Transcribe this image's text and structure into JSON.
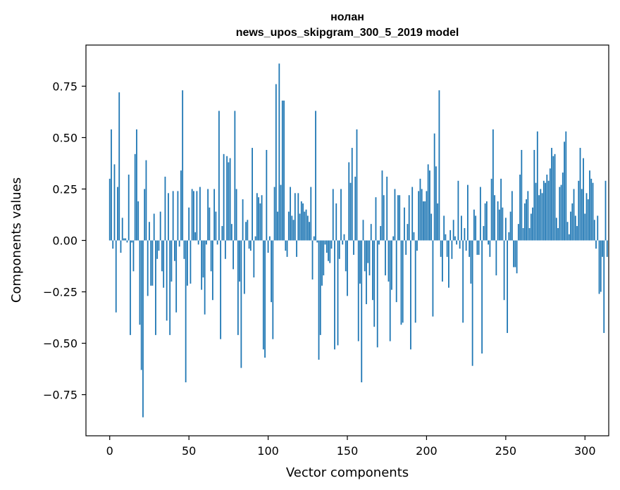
{
  "chart_data": {
    "type": "bar",
    "title": "нолан",
    "subtitle": "news_upos_skipgram_300_5_2019 model",
    "xlabel": "Vector components",
    "ylabel": "Components values",
    "xlim": [
      -15,
      315
    ],
    "ylim": [
      -0.95,
      0.95
    ],
    "xticks": [
      0,
      50,
      100,
      150,
      200,
      250,
      300
    ],
    "yticks": [
      -0.75,
      -0.5,
      -0.25,
      0.0,
      0.25,
      0.5,
      0.75
    ],
    "xtick_labels": [
      "0",
      "50",
      "100",
      "150",
      "200",
      "250",
      "300"
    ],
    "ytick_labels": [
      "−0.75",
      "−0.50",
      "−0.25",
      "0.00",
      "0.25",
      "0.50",
      "0.75"
    ],
    "bar_color": "#1f77b4",
    "grid": false,
    "values": [
      0.3,
      0.54,
      -0.04,
      0.37,
      -0.35,
      0.26,
      0.72,
      -0.06,
      0.11,
      0.01,
      0.01,
      -0.01,
      0.32,
      -0.46,
      -0.01,
      -0.15,
      0.42,
      0.54,
      0.19,
      -0.41,
      -0.63,
      -0.86,
      0.25,
      0.39,
      -0.27,
      0.09,
      -0.22,
      -0.22,
      0.13,
      -0.46,
      -0.09,
      -0.05,
      0.14,
      -0.15,
      -0.23,
      0.31,
      -0.39,
      0.23,
      -0.46,
      -0.2,
      0.24,
      -0.1,
      -0.35,
      0.24,
      -0.03,
      0.34,
      0.73,
      -0.09,
      -0.69,
      -0.22,
      0.16,
      -0.21,
      0.25,
      0.24,
      0.04,
      0.24,
      -0.02,
      0.26,
      -0.24,
      -0.18,
      -0.36,
      -0.02,
      0.25,
      0.16,
      -0.15,
      -0.29,
      0.25,
      0.14,
      -0.02,
      0.63,
      -0.48,
      0.07,
      0.42,
      -0.09,
      0.41,
      0.38,
      0.4,
      0.08,
      -0.14,
      0.63,
      0.25,
      -0.46,
      -0.2,
      -0.62,
      0.2,
      -0.26,
      0.09,
      0.1,
      -0.04,
      -0.05,
      0.45,
      -0.18,
      0.02,
      0.23,
      0.21,
      0.18,
      0.22,
      -0.53,
      -0.57,
      0.44,
      -0.06,
      0.02,
      -0.3,
      -0.48,
      0.26,
      0.76,
      0.14,
      0.86,
      0.27,
      0.68,
      0.68,
      -0.05,
      -0.08,
      0.14,
      0.26,
      0.12,
      0.1,
      0.23,
      -0.08,
      0.23,
      0.13,
      0.19,
      0.18,
      0.14,
      0.15,
      0.12,
      0.09,
      0.26,
      -0.19,
      0.02,
      0.63,
      -0.01,
      -0.58,
      -0.46,
      -0.22,
      -0.17,
      -0.02,
      -0.06,
      -0.1,
      -0.11,
      -0.04,
      0.25,
      -0.53,
      0.18,
      -0.51,
      -0.09,
      0.25,
      -0.02,
      0.03,
      -0.15,
      -0.27,
      0.38,
      0.28,
      0.45,
      -0.07,
      0.31,
      0.54,
      -0.49,
      -0.21,
      -0.69,
      0.1,
      -0.15,
      -0.31,
      -0.11,
      -0.17,
      0.08,
      -0.29,
      -0.42,
      0.21,
      -0.52,
      -0.02,
      0.07,
      0.34,
      0.22,
      -0.17,
      0.31,
      -0.2,
      -0.49,
      -0.24,
      0.02,
      0.25,
      -0.3,
      0.22,
      0.22,
      -0.41,
      -0.4,
      0.16,
      -0.07,
      0.08,
      0.22,
      -0.53,
      0.26,
      0.04,
      -0.4,
      -0.05,
      0.24,
      0.3,
      0.25,
      0.19,
      0.19,
      0.24,
      0.37,
      0.34,
      0.13,
      -0.37,
      0.52,
      0.36,
      0.18,
      0.73,
      -0.08,
      -0.2,
      0.12,
      0.03,
      -0.08,
      -0.23,
      0.05,
      -0.09,
      0.1,
      0.02,
      -0.02,
      0.29,
      -0.04,
      0.12,
      -0.4,
      0.06,
      -0.05,
      0.27,
      -0.08,
      -0.21,
      -0.61,
      0.15,
      0.12,
      -0.07,
      -0.07,
      0.26,
      -0.55,
      0.07,
      0.18,
      0.19,
      -0.02,
      -0.08,
      0.3,
      0.54,
      0.22,
      -0.17,
      0.19,
      0.15,
      0.3,
      0.16,
      -0.29,
      0.11,
      -0.45,
      0.04,
      0.14,
      0.24,
      -0.13,
      -0.13,
      -0.16,
      0.08,
      0.32,
      0.44,
      0.06,
      0.18,
      0.2,
      0.24,
      0.06,
      0.13,
      0.16,
      0.44,
      0.28,
      0.53,
      0.22,
      0.25,
      0.23,
      0.29,
      0.28,
      0.32,
      0.29,
      0.35,
      0.45,
      0.41,
      0.42,
      0.11,
      0.06,
      0.26,
      0.27,
      0.33,
      0.48,
      0.53,
      0.09,
      0.03,
      0.14,
      0.18,
      0.25,
      0.12,
      0.07,
      0.29,
      0.45,
      0.25,
      0.4,
      0.13,
      0.23,
      0.2,
      0.34,
      0.3,
      0.28,
      0.1,
      -0.04,
      0.12,
      -0.26,
      -0.25,
      -0.08,
      -0.45,
      0.29,
      -0.08
    ]
  }
}
